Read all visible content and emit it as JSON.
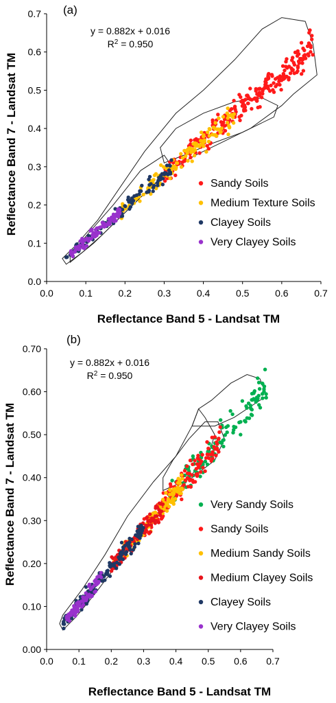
{
  "chart_data": [
    {
      "type": "scatter",
      "panel_label": "(a)",
      "xlabel": "Reflectance Band 5 - Landsat TM",
      "ylabel": "Reflectance Band 7 - Landsat TM",
      "xlim": [
        0,
        0.7
      ],
      "ylim": [
        0,
        0.7
      ],
      "xticks": [
        "0.0",
        "0.1",
        "0.2",
        "0.3",
        "0.4",
        "0.5",
        "0.6",
        "0.7"
      ],
      "yticks": [
        "0.0",
        "0.1",
        "0.2",
        "0.3",
        "0.4",
        "0.5",
        "0.6",
        "0.7"
      ],
      "equation": "y = 0.882x + 0.016",
      "r2_label": "R",
      "r2_sup": "2",
      "r2_value": " = 0.950",
      "fit": {
        "slope": 0.882,
        "intercept": 0.016
      },
      "legend_position": "right",
      "series": [
        {
          "name": "Sandy Soils",
          "color": "#ff1a1a",
          "x_range": [
            0.3,
            0.68
          ],
          "count": 260
        },
        {
          "name": "Medium Texture Soils",
          "color": "#ffc000",
          "x_range": [
            0.19,
            0.48
          ],
          "count": 140
        },
        {
          "name": "Clayey Soils",
          "color": "#1f3864",
          "x_range": [
            0.05,
            0.32
          ],
          "count": 110
        },
        {
          "name": "Very Clayey Soils",
          "color": "#9932cc",
          "x_range": [
            0.06,
            0.19
          ],
          "count": 90
        }
      ],
      "outlines": [
        [
          [
            0.05,
            0.045
          ],
          [
            0.09,
            0.075
          ],
          [
            0.14,
            0.12
          ],
          [
            0.21,
            0.19
          ],
          [
            0.27,
            0.25
          ],
          [
            0.33,
            0.3
          ],
          [
            0.38,
            0.33
          ],
          [
            0.44,
            0.36
          ],
          [
            0.52,
            0.4
          ],
          [
            0.6,
            0.46
          ],
          [
            0.63,
            0.49
          ],
          [
            0.69,
            0.54
          ],
          [
            0.68,
            0.62
          ],
          [
            0.66,
            0.68
          ],
          [
            0.6,
            0.69
          ],
          [
            0.55,
            0.66
          ],
          [
            0.48,
            0.58
          ],
          [
            0.4,
            0.5
          ],
          [
            0.33,
            0.44
          ],
          [
            0.25,
            0.34
          ],
          [
            0.19,
            0.25
          ],
          [
            0.13,
            0.16
          ],
          [
            0.07,
            0.09
          ],
          [
            0.04,
            0.06
          ],
          [
            0.05,
            0.045
          ]
        ],
        [
          [
            0.3,
            0.31
          ],
          [
            0.35,
            0.33
          ],
          [
            0.42,
            0.36
          ],
          [
            0.5,
            0.39
          ],
          [
            0.58,
            0.43
          ],
          [
            0.59,
            0.46
          ],
          [
            0.55,
            0.48
          ],
          [
            0.48,
            0.47
          ],
          [
            0.4,
            0.44
          ],
          [
            0.33,
            0.4
          ],
          [
            0.29,
            0.35
          ],
          [
            0.3,
            0.31
          ]
        ],
        [
          [
            0.06,
            0.05
          ],
          [
            0.12,
            0.1
          ],
          [
            0.19,
            0.17
          ],
          [
            0.26,
            0.24
          ],
          [
            0.32,
            0.3
          ],
          [
            0.3,
            0.33
          ],
          [
            0.24,
            0.29
          ],
          [
            0.17,
            0.2
          ],
          [
            0.11,
            0.13
          ],
          [
            0.06,
            0.07
          ],
          [
            0.06,
            0.05
          ]
        ]
      ]
    },
    {
      "type": "scatter",
      "panel_label": "(b)",
      "xlabel": "Reflectance Band 5 - Landsat TM",
      "ylabel": "Reflectance Band 7 - Landsat TM",
      "xlim": [
        0,
        0.7
      ],
      "ylim": [
        0,
        0.7
      ],
      "xticks": [
        "0.0",
        "0.1",
        "0.2",
        "0.3",
        "0.4",
        "0.5",
        "0.6",
        "0.7"
      ],
      "yticks": [
        "0.00",
        "0.10",
        "0.20",
        "0.30",
        "0.40",
        "0.50",
        "0.60",
        "0.70"
      ],
      "equation": "y = 0.882x + 0.016",
      "r2_label": "R",
      "r2_sup": "2",
      "r2_value": " = 0.950",
      "fit": {
        "slope": 0.882,
        "intercept": 0.016
      },
      "legend_position": "right",
      "series": [
        {
          "name": "Very Sandy Soils",
          "color": "#00b050",
          "x_range": [
            0.38,
            0.68
          ],
          "count": 130
        },
        {
          "name": "Sandy Soils",
          "color": "#ff1a1a",
          "x_range": [
            0.3,
            0.54
          ],
          "count": 150
        },
        {
          "name": "Medium Sandy Soils",
          "color": "#ffc000",
          "x_range": [
            0.2,
            0.42
          ],
          "count": 120
        },
        {
          "name": "Medium Clayey Soils",
          "color": "#e8141b",
          "x_range": [
            0.2,
            0.36
          ],
          "count": 100
        },
        {
          "name": "Clayey Soils",
          "color": "#1f3864",
          "x_range": [
            0.05,
            0.3
          ],
          "count": 170
        },
        {
          "name": "Very Clayey Soils",
          "color": "#9932cc",
          "x_range": [
            0.06,
            0.17
          ],
          "count": 80
        }
      ],
      "outlines": [
        [
          [
            0.05,
            0.045
          ],
          [
            0.09,
            0.075
          ],
          [
            0.15,
            0.13
          ],
          [
            0.22,
            0.2
          ],
          [
            0.28,
            0.26
          ],
          [
            0.33,
            0.3
          ],
          [
            0.38,
            0.35
          ],
          [
            0.44,
            0.4
          ],
          [
            0.5,
            0.45
          ],
          [
            0.52,
            0.5
          ],
          [
            0.49,
            0.54
          ],
          [
            0.47,
            0.56
          ],
          [
            0.45,
            0.52
          ],
          [
            0.4,
            0.45
          ],
          [
            0.33,
            0.39
          ],
          [
            0.25,
            0.31
          ],
          [
            0.18,
            0.22
          ],
          [
            0.11,
            0.14
          ],
          [
            0.05,
            0.08
          ],
          [
            0.04,
            0.06
          ],
          [
            0.05,
            0.045
          ]
        ],
        [
          [
            0.36,
            0.37
          ],
          [
            0.45,
            0.4
          ],
          [
            0.52,
            0.44
          ],
          [
            0.55,
            0.49
          ],
          [
            0.53,
            0.53
          ],
          [
            0.49,
            0.53
          ],
          [
            0.44,
            0.49
          ],
          [
            0.39,
            0.44
          ],
          [
            0.36,
            0.4
          ],
          [
            0.36,
            0.37
          ]
        ],
        [
          [
            0.45,
            0.52
          ],
          [
            0.52,
            0.52
          ],
          [
            0.58,
            0.54
          ],
          [
            0.68,
            0.59
          ],
          [
            0.66,
            0.63
          ],
          [
            0.62,
            0.64
          ],
          [
            0.57,
            0.62
          ],
          [
            0.51,
            0.58
          ],
          [
            0.47,
            0.56
          ],
          [
            0.45,
            0.52
          ]
        ]
      ]
    }
  ]
}
